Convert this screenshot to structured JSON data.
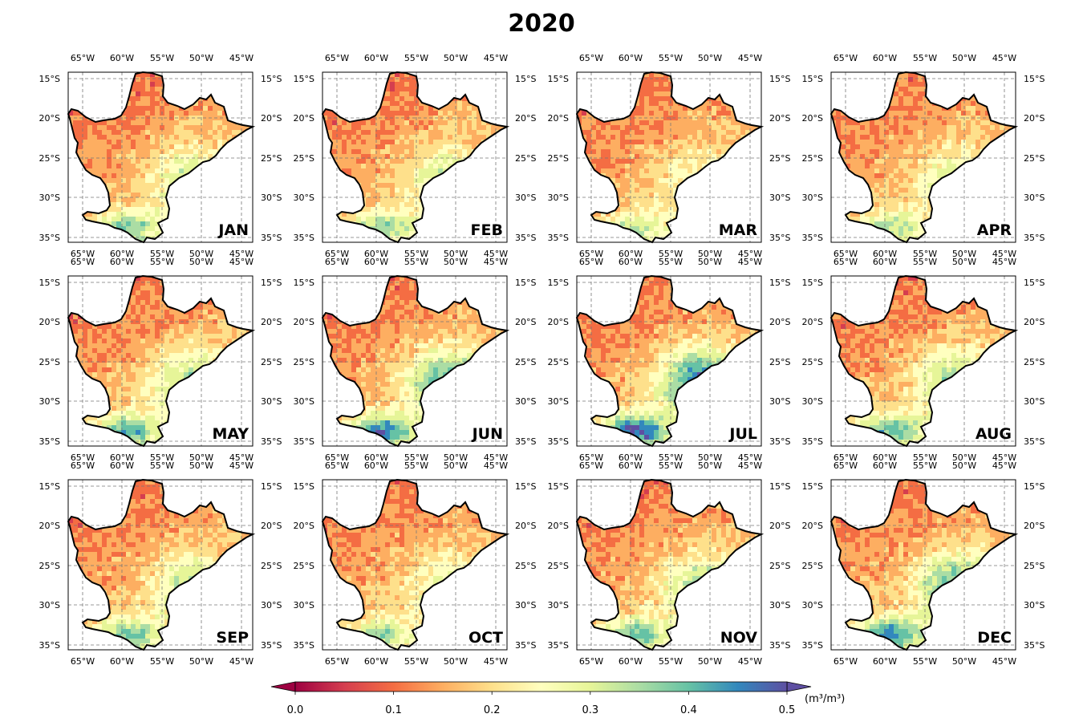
{
  "title": "2020",
  "lon_ticks": [
    "65°W",
    "60°W",
    "55°W",
    "50°W",
    "45°W"
  ],
  "lat_ticks": [
    "15°S",
    "20°S",
    "25°S",
    "30°S",
    "35°S"
  ],
  "months": [
    {
      "label": "JAN",
      "wetness": 0.38
    },
    {
      "label": "FEB",
      "wetness": 0.36
    },
    {
      "label": "MAR",
      "wetness": 0.3
    },
    {
      "label": "APR",
      "wetness": 0.34
    },
    {
      "label": "MAY",
      "wetness": 0.42
    },
    {
      "label": "JUN",
      "wetness": 0.5
    },
    {
      "label": "JUL",
      "wetness": 0.56
    },
    {
      "label": "AUG",
      "wetness": 0.42
    },
    {
      "label": "SEP",
      "wetness": 0.4
    },
    {
      "label": "OCT",
      "wetness": 0.34
    },
    {
      "label": "NOV",
      "wetness": 0.4
    },
    {
      "label": "DEC",
      "wetness": 0.48
    }
  ],
  "colorbar": {
    "ticks": [
      "0.0",
      "0.1",
      "0.2",
      "0.3",
      "0.4",
      "0.5"
    ],
    "unit": "(m³/m³)",
    "min": 0.0,
    "max": 0.5,
    "extend": "both",
    "colormap": [
      "#9e0142",
      "#d53e4f",
      "#f46d43",
      "#fdae61",
      "#fee08b",
      "#ffffbf",
      "#e6f598",
      "#abdda4",
      "#66c2a5",
      "#3288bd",
      "#5e4fa2"
    ]
  }
}
